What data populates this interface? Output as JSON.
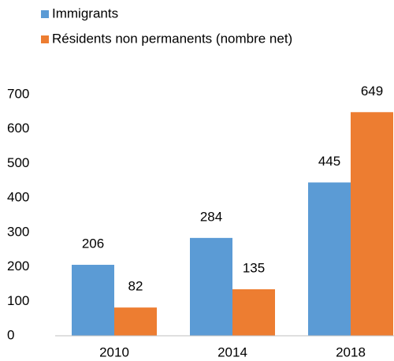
{
  "chart_data": {
    "type": "bar",
    "categories": [
      "2010",
      "2014",
      "2018"
    ],
    "series": [
      {
        "name": "Immigrants",
        "color": "#5b9bd5",
        "values": [
          206,
          284,
          445
        ]
      },
      {
        "name": "Résidents non permanents (nombre net)",
        "color": "#ed7d31",
        "values": [
          82,
          135,
          649
        ]
      }
    ],
    "ylim": [
      0,
      700
    ],
    "yticks": [
      0,
      100,
      200,
      300,
      400,
      500,
      600,
      700
    ],
    "grid": false,
    "legend": "top-left"
  }
}
